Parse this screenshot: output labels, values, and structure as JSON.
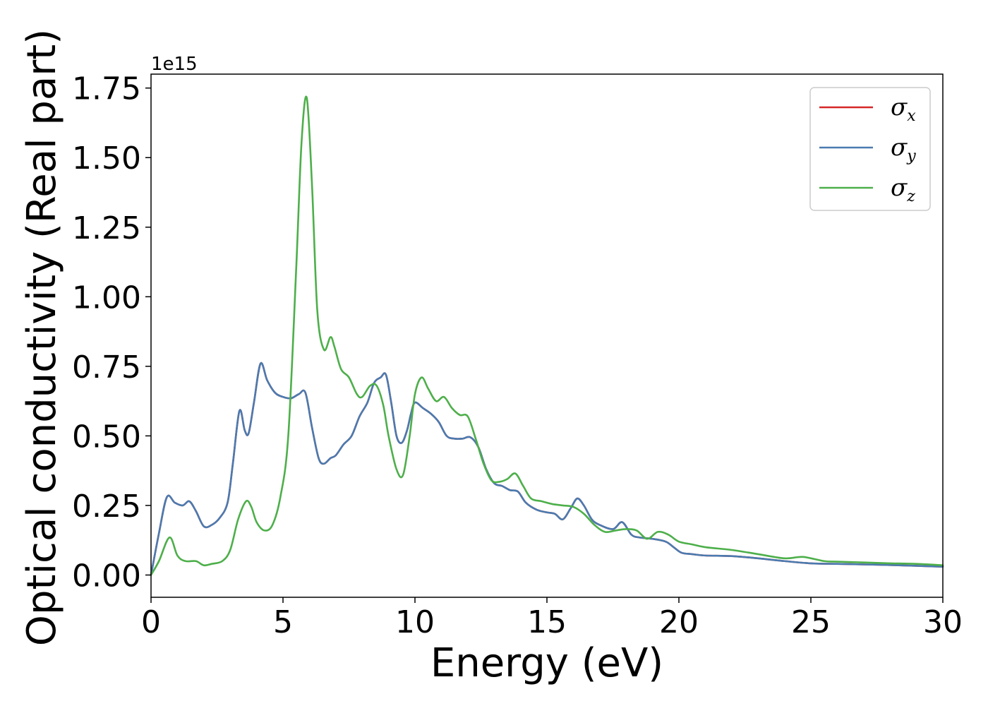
{
  "chart_data": {
    "type": "line",
    "xlabel": "Energy (eV)",
    "ylabel": "Optical conductivity (Real part)",
    "y_offset_label": "1e15",
    "xlim": [
      0,
      30
    ],
    "ylim": [
      -0.08,
      1.8
    ],
    "x_ticks": [
      0,
      5,
      10,
      15,
      20,
      25,
      30
    ],
    "x_tick_labels": [
      "0",
      "5",
      "10",
      "15",
      "20",
      "25",
      "30"
    ],
    "y_ticks": [
      0.0,
      0.25,
      0.5,
      0.75,
      1.0,
      1.25,
      1.5,
      1.75
    ],
    "y_tick_labels": [
      "0.00",
      "0.25",
      "0.50",
      "0.75",
      "1.00",
      "1.25",
      "1.50",
      "1.75"
    ],
    "grid": false,
    "legend_position": "top-right",
    "series": [
      {
        "name": "σx",
        "symbol": "σ",
        "subscript": "x",
        "color": "#d62728",
        "x": [
          0,
          0.3,
          0.6,
          0.9,
          1.2,
          1.45,
          1.7,
          2.0,
          2.3,
          2.6,
          2.9,
          3.1,
          3.35,
          3.55,
          3.7,
          3.9,
          4.15,
          4.4,
          4.7,
          5.0,
          5.3,
          5.6,
          5.85,
          6.1,
          6.35,
          6.55,
          6.8,
          7.0,
          7.3,
          7.6,
          7.9,
          8.2,
          8.45,
          8.7,
          8.9,
          9.1,
          9.3,
          9.5,
          9.7,
          9.85,
          10.0,
          10.3,
          10.6,
          10.9,
          11.2,
          11.5,
          11.8,
          12.1,
          12.4,
          12.7,
          13.0,
          13.3,
          13.6,
          13.9,
          14.2,
          14.6,
          15.0,
          15.3,
          15.6,
          15.9,
          16.15,
          16.4,
          16.7,
          17.0,
          17.5,
          17.85,
          18.2,
          18.5,
          19.0,
          19.5,
          19.8,
          20.1,
          20.5,
          21.0,
          22.0,
          23.0,
          24.0,
          25.0,
          26.0,
          27.0,
          28.0,
          29.0,
          30.0
        ],
        "values": [
          0.0,
          0.15,
          0.28,
          0.26,
          0.25,
          0.265,
          0.23,
          0.175,
          0.18,
          0.205,
          0.26,
          0.4,
          0.59,
          0.52,
          0.51,
          0.62,
          0.76,
          0.7,
          0.655,
          0.64,
          0.635,
          0.65,
          0.655,
          0.53,
          0.42,
          0.4,
          0.42,
          0.43,
          0.47,
          0.5,
          0.57,
          0.62,
          0.69,
          0.71,
          0.72,
          0.62,
          0.5,
          0.475,
          0.52,
          0.58,
          0.62,
          0.6,
          0.58,
          0.55,
          0.5,
          0.49,
          0.49,
          0.495,
          0.46,
          0.38,
          0.33,
          0.32,
          0.305,
          0.3,
          0.26,
          0.235,
          0.225,
          0.22,
          0.2,
          0.24,
          0.275,
          0.25,
          0.2,
          0.18,
          0.165,
          0.19,
          0.145,
          0.135,
          0.13,
          0.12,
          0.1,
          0.08,
          0.075,
          0.07,
          0.068,
          0.06,
          0.05,
          0.042,
          0.04,
          0.038,
          0.036,
          0.033,
          0.03
        ]
      },
      {
        "name": "σy",
        "symbol": "σ",
        "subscript": "y",
        "color": "#4a7bb0",
        "x": [
          0,
          0.3,
          0.6,
          0.9,
          1.2,
          1.45,
          1.7,
          2.0,
          2.3,
          2.6,
          2.9,
          3.1,
          3.35,
          3.55,
          3.7,
          3.9,
          4.15,
          4.4,
          4.7,
          5.0,
          5.3,
          5.6,
          5.85,
          6.1,
          6.35,
          6.55,
          6.8,
          7.0,
          7.3,
          7.6,
          7.9,
          8.2,
          8.45,
          8.7,
          8.9,
          9.1,
          9.3,
          9.5,
          9.7,
          9.85,
          10.0,
          10.3,
          10.6,
          10.9,
          11.2,
          11.5,
          11.8,
          12.1,
          12.4,
          12.7,
          13.0,
          13.3,
          13.6,
          13.9,
          14.2,
          14.6,
          15.0,
          15.3,
          15.6,
          15.9,
          16.15,
          16.4,
          16.7,
          17.0,
          17.5,
          17.85,
          18.2,
          18.5,
          19.0,
          19.5,
          19.8,
          20.1,
          20.5,
          21.0,
          22.0,
          23.0,
          24.0,
          25.0,
          26.0,
          27.0,
          28.0,
          29.0,
          30.0
        ],
        "values": [
          0.0,
          0.15,
          0.28,
          0.26,
          0.25,
          0.265,
          0.23,
          0.175,
          0.18,
          0.205,
          0.26,
          0.4,
          0.59,
          0.52,
          0.51,
          0.62,
          0.76,
          0.7,
          0.655,
          0.64,
          0.635,
          0.65,
          0.655,
          0.53,
          0.42,
          0.4,
          0.42,
          0.43,
          0.47,
          0.5,
          0.57,
          0.62,
          0.69,
          0.71,
          0.72,
          0.62,
          0.5,
          0.475,
          0.52,
          0.58,
          0.62,
          0.6,
          0.58,
          0.55,
          0.5,
          0.49,
          0.49,
          0.495,
          0.46,
          0.38,
          0.33,
          0.32,
          0.305,
          0.3,
          0.26,
          0.235,
          0.225,
          0.22,
          0.2,
          0.24,
          0.275,
          0.25,
          0.2,
          0.18,
          0.165,
          0.19,
          0.145,
          0.135,
          0.13,
          0.12,
          0.1,
          0.08,
          0.075,
          0.07,
          0.068,
          0.06,
          0.05,
          0.042,
          0.04,
          0.038,
          0.036,
          0.033,
          0.03
        ]
      },
      {
        "name": "σz",
        "symbol": "σ",
        "subscript": "z",
        "color": "#4daf4a",
        "x": [
          0,
          0.3,
          0.7,
          1.0,
          1.3,
          1.7,
          2.0,
          2.3,
          2.7,
          3.0,
          3.3,
          3.6,
          3.8,
          4.0,
          4.3,
          4.6,
          4.9,
          5.2,
          5.5,
          5.7,
          5.9,
          6.1,
          6.3,
          6.55,
          6.8,
          6.95,
          7.2,
          7.5,
          7.8,
          8.0,
          8.3,
          8.55,
          8.8,
          9.0,
          9.3,
          9.55,
          9.8,
          10.0,
          10.25,
          10.5,
          10.8,
          11.1,
          11.4,
          11.7,
          12.0,
          12.3,
          12.6,
          12.9,
          13.2,
          13.5,
          13.8,
          14.1,
          14.4,
          14.8,
          15.2,
          15.6,
          16.0,
          16.4,
          16.8,
          17.2,
          17.6,
          18.0,
          18.4,
          18.8,
          19.2,
          19.6,
          20.0,
          20.5,
          21.0,
          22.0,
          23.0,
          24.0,
          24.7,
          25.5,
          26.0,
          27.0,
          28.0,
          29.0,
          30.0
        ],
        "values": [
          0.0,
          0.05,
          0.135,
          0.07,
          0.05,
          0.05,
          0.035,
          0.04,
          0.05,
          0.09,
          0.2,
          0.265,
          0.245,
          0.19,
          0.16,
          0.18,
          0.28,
          0.5,
          1.1,
          1.55,
          1.715,
          1.4,
          0.95,
          0.81,
          0.855,
          0.82,
          0.74,
          0.71,
          0.65,
          0.64,
          0.68,
          0.68,
          0.61,
          0.5,
          0.38,
          0.36,
          0.5,
          0.65,
          0.71,
          0.67,
          0.625,
          0.64,
          0.6,
          0.575,
          0.57,
          0.49,
          0.4,
          0.34,
          0.335,
          0.345,
          0.365,
          0.32,
          0.275,
          0.265,
          0.255,
          0.25,
          0.245,
          0.22,
          0.18,
          0.155,
          0.16,
          0.165,
          0.16,
          0.13,
          0.155,
          0.145,
          0.12,
          0.11,
          0.1,
          0.09,
          0.075,
          0.06,
          0.065,
          0.05,
          0.048,
          0.045,
          0.042,
          0.04,
          0.035
        ]
      }
    ]
  }
}
